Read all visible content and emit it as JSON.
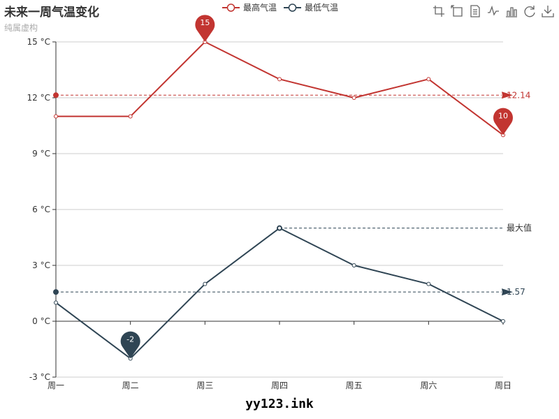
{
  "title": "未来一周气温变化",
  "subtitle": "纯属虚构",
  "watermark": "yy123.ink",
  "toolbox": [
    {
      "name": "area-zoom-icon"
    },
    {
      "name": "zoom-reset-icon"
    },
    {
      "name": "data-view-icon"
    },
    {
      "name": "line-chart-icon"
    },
    {
      "name": "bar-chart-icon"
    },
    {
      "name": "restore-icon"
    },
    {
      "name": "save-image-icon"
    }
  ],
  "chart_data": {
    "type": "line",
    "categories": [
      "周一",
      "周二",
      "周三",
      "周四",
      "周五",
      "周六",
      "周日"
    ],
    "ylim": [
      -3,
      15
    ],
    "y_interval": 3,
    "y_unit": " °C",
    "grid": true,
    "legend_position": "top",
    "series": [
      {
        "name": "最高气温",
        "color": "#c23531",
        "values": [
          11,
          11,
          15,
          13,
          12,
          13,
          10
        ],
        "mark_points": [
          {
            "index": 2,
            "label": "15"
          },
          {
            "index": 6,
            "label": "10"
          }
        ],
        "mark_line": {
          "value": 12.14,
          "label": "12.14",
          "type": "average"
        }
      },
      {
        "name": "最低气温",
        "color": "#2f4554",
        "values": [
          1,
          -2,
          2,
          5,
          3,
          2,
          0
        ],
        "mark_points": [
          {
            "index": 1,
            "label": "-2"
          }
        ],
        "mark_line": {
          "value": 1.57,
          "label": "1.57",
          "type": "average"
        },
        "max_line": {
          "index": 3,
          "value": 5,
          "label": "最大值"
        }
      }
    ]
  }
}
